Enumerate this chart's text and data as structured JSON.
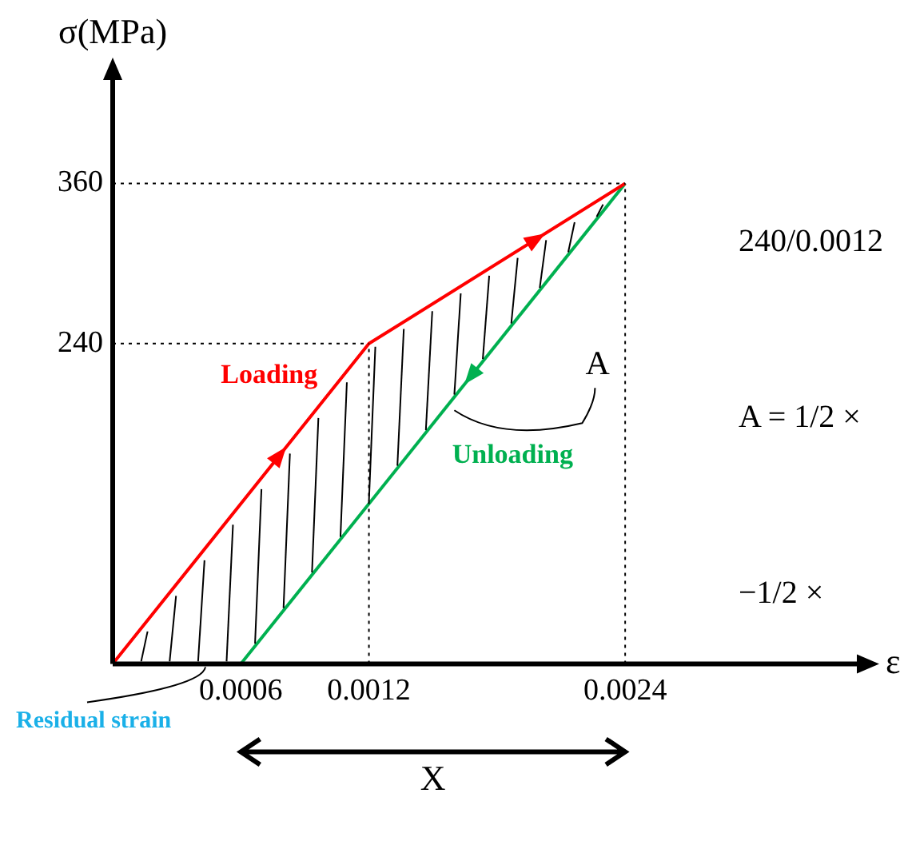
{
  "chart_data": {
    "type": "line",
    "xlabel": "ε",
    "ylabel": "σ(MPa)",
    "series": [
      {
        "name": "Loading",
        "color": "#ff0000",
        "x": [
          0,
          0.0012,
          0.0024
        ],
        "values": [
          0,
          240,
          360
        ]
      },
      {
        "name": "Unloading",
        "color": "#00b050",
        "x": [
          0.0024,
          0.0006
        ],
        "values": [
          360,
          0
        ]
      }
    ],
    "xlim": [
      0,
      0.0035
    ],
    "ylim": [
      0,
      440
    ],
    "xticks": [
      0.0006,
      0.0012,
      0.0024
    ],
    "yticks": [
      240,
      360
    ],
    "ref_lines": [
      {
        "axis": "y",
        "value": 360,
        "color": "#000000",
        "line_style": "dotted"
      },
      {
        "axis": "y",
        "value": 240,
        "color": "#000000",
        "line_style": "dotted"
      },
      {
        "axis": "x",
        "value": 0.0012,
        "color": "#000000",
        "line_style": "dotted"
      },
      {
        "axis": "x",
        "value": 0.0024,
        "color": "#000000",
        "line_style": "dotted"
      }
    ],
    "annotations": [
      {
        "text": "A",
        "x": 0.0016,
        "y": 190
      },
      "Residual strain",
      "X",
      "240/0.0012",
      "A = 1/2 ×",
      "−1/2 ×"
    ],
    "grid": false,
    "legend": false,
    "marker": "none",
    "line_style": "solid"
  }
}
